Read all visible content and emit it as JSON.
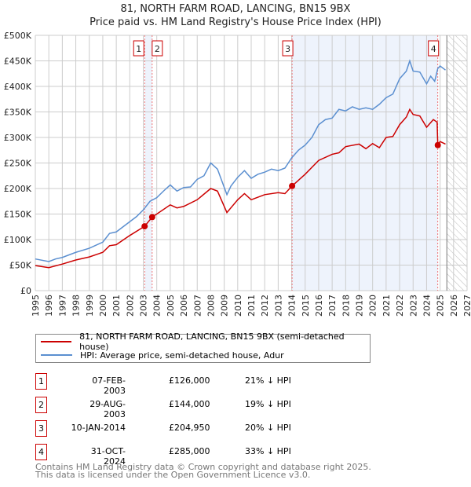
{
  "chart_data": {
    "type": "line",
    "title": "81, NORTH FARM ROAD, LANCING, BN15 9BX",
    "subtitle": "Price paid vs. HM Land Registry's House Price Index (HPI)",
    "xlim": [
      1995,
      2027
    ],
    "ylim": [
      0,
      500000
    ],
    "x_ticks": [
      "1995",
      "1996",
      "1997",
      "1998",
      "1999",
      "2000",
      "2001",
      "2002",
      "2003",
      "2004",
      "2005",
      "2006",
      "2007",
      "2008",
      "2009",
      "2010",
      "2011",
      "2012",
      "2013",
      "2014",
      "2015",
      "2016",
      "2017",
      "2018",
      "2019",
      "2020",
      "2021",
      "2022",
      "2023",
      "2024",
      "2025",
      "2026",
      "2027"
    ],
    "y_ticks": [
      {
        "v": 0,
        "label": "£0"
      },
      {
        "v": 50000,
        "label": "£50K"
      },
      {
        "v": 100000,
        "label": "£100K"
      },
      {
        "v": 150000,
        "label": "£150K"
      },
      {
        "v": 200000,
        "label": "£200K"
      },
      {
        "v": 250000,
        "label": "£250K"
      },
      {
        "v": 300000,
        "label": "£300K"
      },
      {
        "v": 350000,
        "label": "£350K"
      },
      {
        "v": 400000,
        "label": "£400K"
      },
      {
        "v": 450000,
        "label": "£450K"
      },
      {
        "v": 500000,
        "label": "£500K"
      }
    ],
    "grid": true,
    "forecast_start": 2025.5,
    "series": [
      {
        "name": "81, NORTH FARM ROAD, LANCING, BN15 9BX (semi-detached house)",
        "color": "#cc0000",
        "x": [
          1995,
          1996,
          1997,
          1998,
          1999,
          2000,
          2000.5,
          2001,
          2002,
          2003.1,
          2003.66,
          2004,
          2005,
          2005.5,
          2006,
          2007,
          2008,
          2008.5,
          2009.2,
          2010,
          2010.5,
          2011,
          2012,
          2013,
          2013.5,
          2014.03,
          2015,
          2016,
          2017,
          2017.5,
          2018,
          2019,
          2019.5,
          2020,
          2020.5,
          2021,
          2021.5,
          2022,
          2022.5,
          2022.75,
          2023,
          2023.5,
          2024,
          2024.5,
          2024.78,
          2024.83,
          2025,
          2025.4
        ],
        "y": [
          49000,
          45000,
          52000,
          60000,
          66000,
          75000,
          88000,
          90000,
          108000,
          126000,
          144000,
          150000,
          168000,
          162000,
          165000,
          178000,
          200000,
          195000,
          153000,
          178000,
          190000,
          178000,
          188000,
          192000,
          190000,
          204950,
          228000,
          255000,
          267000,
          270000,
          282000,
          287000,
          278000,
          288000,
          280000,
          300000,
          302000,
          325000,
          340000,
          355000,
          345000,
          342000,
          320000,
          335000,
          330000,
          285000,
          292000,
          287000
        ]
      },
      {
        "name": "HPI: Average price, semi-detached house, Adur",
        "color": "#5b8fd0",
        "x": [
          1995,
          1996,
          1996.5,
          1997,
          1998,
          1999,
          2000,
          2000.5,
          2001,
          2002,
          2002.5,
          2003,
          2003.5,
          2004,
          2004.5,
          2005,
          2005.5,
          2006,
          2006.5,
          2007,
          2007.5,
          2008,
          2008.5,
          2009.2,
          2009.5,
          2010,
          2010.5,
          2011,
          2011.5,
          2012,
          2012.5,
          2013,
          2013.5,
          2014,
          2014.5,
          2015,
          2015.5,
          2016,
          2016.5,
          2017,
          2017.5,
          2018,
          2018.5,
          2019,
          2019.5,
          2020,
          2020.5,
          2021,
          2021.5,
          2022,
          2022.5,
          2022.75,
          2023,
          2023.5,
          2024,
          2024.3,
          2024.6,
          2024.83,
          2025,
          2025.4
        ],
        "y": [
          62000,
          57000,
          62000,
          65000,
          75000,
          83000,
          95000,
          112000,
          115000,
          135000,
          145000,
          158000,
          175000,
          182000,
          195000,
          207000,
          195000,
          202000,
          203000,
          218000,
          225000,
          250000,
          238000,
          188000,
          205000,
          222000,
          235000,
          220000,
          228000,
          232000,
          238000,
          235000,
          240000,
          260000,
          275000,
          285000,
          300000,
          325000,
          335000,
          338000,
          355000,
          352000,
          360000,
          355000,
          358000,
          355000,
          365000,
          378000,
          385000,
          415000,
          430000,
          450000,
          430000,
          428000,
          405000,
          420000,
          410000,
          435000,
          440000,
          432000
        ]
      }
    ],
    "transactions": [
      {
        "n": "1",
        "x": 2003.1,
        "date": "07-FEB-2003",
        "price": "£126,000",
        "value": 126000,
        "hpi": "21% ↓ HPI"
      },
      {
        "n": "2",
        "x": 2003.66,
        "date": "29-AUG-2003",
        "price": "£144,000",
        "value": 144000,
        "hpi": "19% ↓ HPI"
      },
      {
        "n": "3",
        "x": 2014.03,
        "date": "10-JAN-2014",
        "price": "£204,950",
        "value": 204950,
        "hpi": "20% ↓ HPI"
      },
      {
        "n": "4",
        "x": 2024.83,
        "date": "31-OCT-2024",
        "price": "£285,000",
        "value": 285000,
        "hpi": "33% ↓ HPI"
      }
    ]
  },
  "footer": {
    "line1": "Contains HM Land Registry data © Crown copyright and database right 2025.",
    "line2": "This data is licensed under the Open Government Licence v3.0."
  }
}
